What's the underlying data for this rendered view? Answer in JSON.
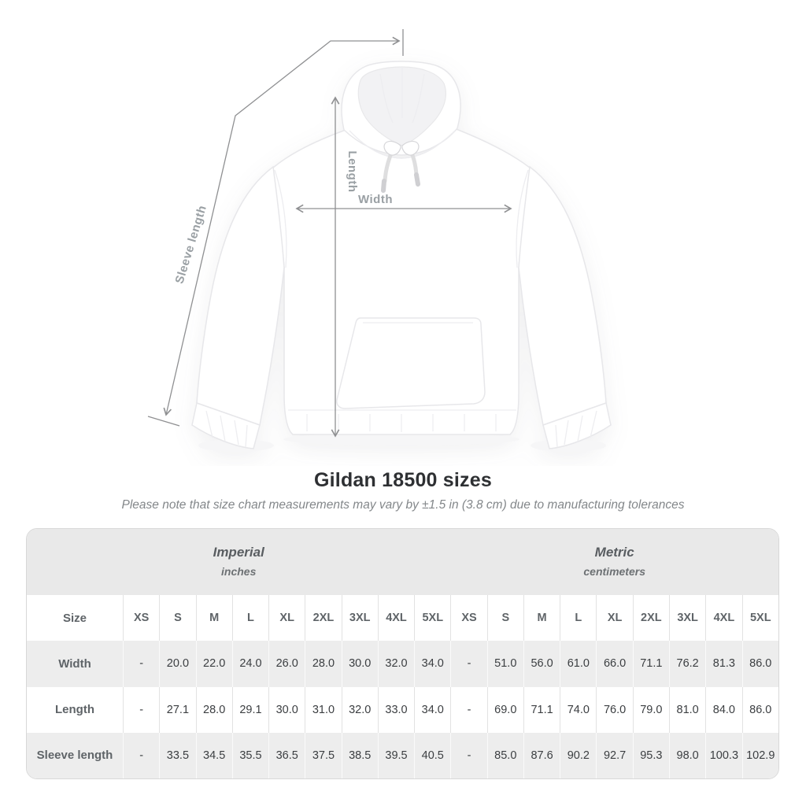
{
  "diagram": {
    "labels": {
      "sleeve": "Sleeve length",
      "length": "Length",
      "width": "Width"
    }
  },
  "chart_data": {
    "type": "table",
    "title": "Gildan 18500 sizes",
    "note": "Please note that size chart measurements may vary by ±1.5 in (3.8 cm) due to manufacturing tolerances",
    "size_column_header": "Size",
    "sizes": [
      "XS",
      "S",
      "M",
      "L",
      "XL",
      "2XL",
      "3XL",
      "4XL",
      "5XL"
    ],
    "sections": [
      {
        "name": "Imperial",
        "unit": "inches"
      },
      {
        "name": "Metric",
        "unit": "centimeters"
      }
    ],
    "rows": [
      {
        "label": "Width",
        "imperial": [
          "-",
          "20.0",
          "22.0",
          "24.0",
          "26.0",
          "28.0",
          "30.0",
          "32.0",
          "34.0"
        ],
        "metric": [
          "-",
          "51.0",
          "56.0",
          "61.0",
          "66.0",
          "71.1",
          "76.2",
          "81.3",
          "86.0"
        ]
      },
      {
        "label": "Length",
        "imperial": [
          "-",
          "27.1",
          "28.0",
          "29.1",
          "30.0",
          "31.0",
          "32.0",
          "33.0",
          "34.0"
        ],
        "metric": [
          "-",
          "69.0",
          "71.1",
          "74.0",
          "76.0",
          "79.0",
          "81.0",
          "84.0",
          "86.0"
        ]
      },
      {
        "label": "Sleeve length",
        "imperial": [
          "-",
          "33.5",
          "34.5",
          "35.5",
          "36.5",
          "37.5",
          "38.5",
          "39.5",
          "40.5"
        ],
        "metric": [
          "-",
          "85.0",
          "87.6",
          "90.2",
          "92.7",
          "95.3",
          "98.0",
          "100.3",
          "102.9"
        ]
      }
    ]
  },
  "colors": {
    "accent_line": "#8f9092",
    "diagram_label": "#9aa0a4",
    "band_bg": "#e9e9e9",
    "alt_row_bg": "#ededed",
    "title_text": "#2e3033",
    "value_text": "#3b3e41"
  }
}
